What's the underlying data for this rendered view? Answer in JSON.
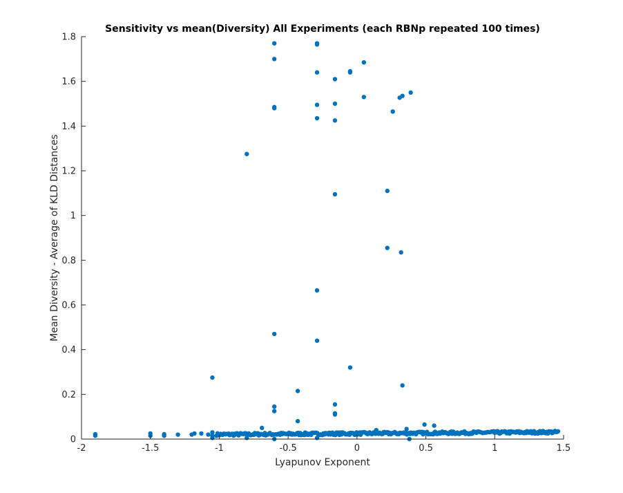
{
  "chart_data": {
    "type": "scatter",
    "title": "Sensitivity vs mean(Diversity) All Experiments (each RBNp repeated 100 times)",
    "xlabel": "Lyapunov Exponent",
    "ylabel": "Mean Diversity - Average of KLD Distances",
    "xlim": [
      -2,
      1.5
    ],
    "ylim": [
      0,
      1.8
    ],
    "xticks": [
      -2,
      -1.5,
      -1,
      -0.5,
      0,
      0.5,
      1,
      1.5
    ],
    "xtick_labels": [
      "-2",
      "-1.5",
      "-1",
      "-0.5",
      "0",
      "0.5",
      "1",
      "1.5"
    ],
    "yticks": [
      0,
      0.2,
      0.4,
      0.6,
      0.8,
      1,
      1.2,
      1.4,
      1.6,
      1.8
    ],
    "ytick_labels": [
      "0",
      "0.2",
      "0.4",
      "0.6",
      "0.8",
      "1",
      "1.2",
      "1.4",
      "1.6",
      "1.8"
    ],
    "grid": false,
    "marker_color": "#0072BD",
    "outlier_points": [
      {
        "x": -0.6,
        "y": 1.77
      },
      {
        "x": -0.29,
        "y": 1.77
      },
      {
        "x": -0.29,
        "y": 1.765
      },
      {
        "x": -0.6,
        "y": 1.7
      },
      {
        "x": 0.05,
        "y": 1.685
      },
      {
        "x": -0.05,
        "y": 1.645
      },
      {
        "x": -0.05,
        "y": 1.64
      },
      {
        "x": -0.29,
        "y": 1.64
      },
      {
        "x": -0.16,
        "y": 1.61
      },
      {
        "x": 0.39,
        "y": 1.55
      },
      {
        "x": 0.33,
        "y": 1.535
      },
      {
        "x": 0.31,
        "y": 1.527
      },
      {
        "x": 0.05,
        "y": 1.53
      },
      {
        "x": -0.16,
        "y": 1.5
      },
      {
        "x": -0.29,
        "y": 1.495
      },
      {
        "x": -0.6,
        "y": 1.485
      },
      {
        "x": -0.6,
        "y": 1.48
      },
      {
        "x": 0.26,
        "y": 1.465
      },
      {
        "x": -0.29,
        "y": 1.435
      },
      {
        "x": -0.16,
        "y": 1.425
      },
      {
        "x": -0.8,
        "y": 1.275
      },
      {
        "x": 0.22,
        "y": 1.11
      },
      {
        "x": -0.16,
        "y": 1.095
      },
      {
        "x": 0.22,
        "y": 0.855
      },
      {
        "x": 0.32,
        "y": 0.835
      },
      {
        "x": -0.29,
        "y": 0.665
      },
      {
        "x": -0.6,
        "y": 0.47
      },
      {
        "x": -0.29,
        "y": 0.44
      },
      {
        "x": -0.05,
        "y": 0.32
      },
      {
        "x": -1.05,
        "y": 0.275
      },
      {
        "x": 0.33,
        "y": 0.24
      },
      {
        "x": -0.43,
        "y": 0.215
      },
      {
        "x": -0.16,
        "y": 0.155
      },
      {
        "x": -0.6,
        "y": 0.145
      },
      {
        "x": -0.6,
        "y": 0.125
      },
      {
        "x": -0.16,
        "y": 0.115
      },
      {
        "x": -0.16,
        "y": 0.11
      },
      {
        "x": -0.43,
        "y": 0.08
      },
      {
        "x": 0.49,
        "y": 0.065
      },
      {
        "x": 0.56,
        "y": 0.06
      },
      {
        "x": -0.69,
        "y": 0.05
      },
      {
        "x": 0.36,
        "y": 0.045
      },
      {
        "x": 0.14,
        "y": 0.04
      },
      {
        "x": 0.38,
        "y": 0.0
      },
      {
        "x": -0.6,
        "y": 0.0
      },
      {
        "x": -0.29,
        "y": 0.005
      },
      {
        "x": -0.8,
        "y": 0.005
      },
      {
        "x": -1.05,
        "y": 0.005
      },
      {
        "x": -1.4,
        "y": 0.015
      },
      {
        "x": -1.5,
        "y": 0.015
      },
      {
        "x": -1.9,
        "y": 0.015
      },
      {
        "x": -1.9,
        "y": 0.022
      },
      {
        "x": -1.5,
        "y": 0.025
      },
      {
        "x": -1.4,
        "y": 0.022
      },
      {
        "x": -1.3,
        "y": 0.02
      },
      {
        "x": -1.2,
        "y": 0.02
      },
      {
        "x": -1.18,
        "y": 0.025
      },
      {
        "x": -1.13,
        "y": 0.025
      },
      {
        "x": -1.08,
        "y": 0.02
      },
      {
        "x": -1.05,
        "y": 0.03
      },
      {
        "x": -1.05,
        "y": 0.015
      }
    ],
    "dense_band": {
      "x_range": [
        -1.02,
        1.46
      ],
      "y_range": [
        0.012,
        0.036
      ],
      "count": 340
    }
  }
}
